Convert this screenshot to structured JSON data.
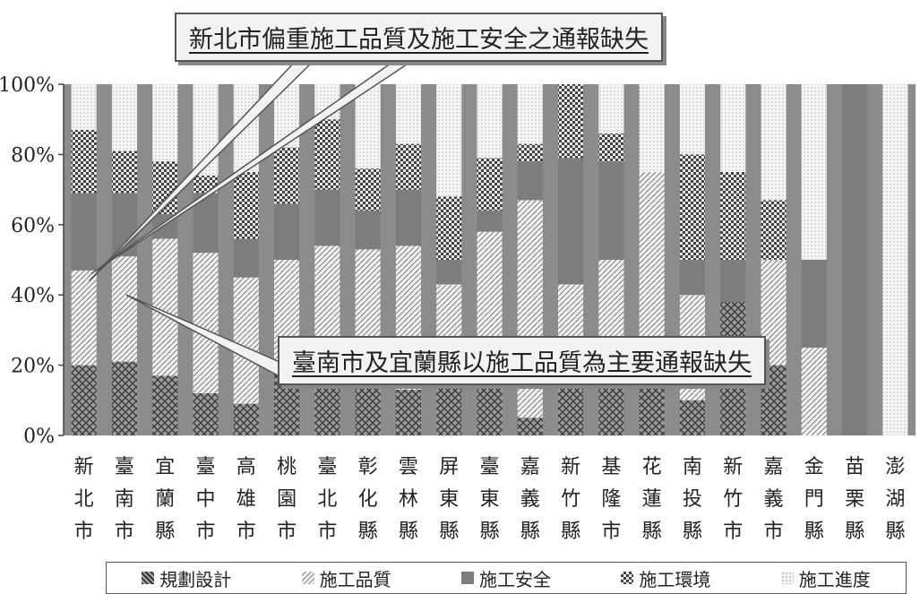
{
  "chart_data": {
    "type": "bar",
    "stacked": true,
    "categories": [
      [
        "新",
        "北",
        "市"
      ],
      [
        "臺",
        "南",
        "市"
      ],
      [
        "宜",
        "蘭",
        "縣"
      ],
      [
        "臺",
        "中",
        "市"
      ],
      [
        "高",
        "雄",
        "市"
      ],
      [
        "桃",
        "園",
        "市"
      ],
      [
        "臺",
        "北",
        "市"
      ],
      [
        "彰",
        "化",
        "縣"
      ],
      [
        "雲",
        "林",
        "縣"
      ],
      [
        "屏",
        "東",
        "縣"
      ],
      [
        "臺",
        "東",
        "縣"
      ],
      [
        "嘉",
        "義",
        "縣"
      ],
      [
        "新",
        "竹",
        "縣"
      ],
      [
        "基",
        "隆",
        "市"
      ],
      [
        "花",
        "蓮",
        "縣"
      ],
      [
        "南",
        "投",
        "縣"
      ],
      [
        "新",
        "竹",
        "市"
      ],
      [
        "嘉",
        "義",
        "市"
      ],
      [
        "金",
        "門",
        "縣"
      ],
      [
        "苗",
        "栗",
        "縣"
      ],
      [
        "澎",
        "湖",
        "縣"
      ]
    ],
    "series": [
      {
        "name": "規劃設計",
        "values": [
          20,
          21,
          17,
          12,
          9,
          18,
          20,
          18,
          13,
          17,
          20,
          5,
          17,
          20,
          25,
          10,
          38,
          20,
          0,
          0,
          0
        ]
      },
      {
        "name": "施工品質",
        "values": [
          27,
          30,
          39,
          40,
          36,
          32,
          34,
          35,
          41,
          26,
          38,
          62,
          26,
          30,
          50,
          30,
          0,
          30,
          25,
          0,
          0
        ]
      },
      {
        "name": "施工安全",
        "values": [
          22,
          18,
          7,
          17,
          11,
          16,
          16,
          11,
          16,
          7,
          6,
          11,
          36,
          28,
          0,
          10,
          12,
          0,
          25,
          100,
          0
        ]
      },
      {
        "name": "施工環境",
        "values": [
          18,
          12,
          15,
          5,
          19,
          16,
          20,
          12,
          13,
          18,
          15,
          5,
          21,
          8,
          0,
          30,
          25,
          17,
          0,
          0,
          0
        ]
      },
      {
        "name": "施工進度",
        "values": [
          13,
          19,
          22,
          26,
          25,
          18,
          10,
          24,
          17,
          32,
          21,
          17,
          0,
          14,
          25,
          20,
          25,
          33,
          50,
          0,
          100
        ]
      }
    ],
    "y_ticks": [
      "100%",
      "80%",
      "60%",
      "40%",
      "20%",
      "0%"
    ],
    "ylim": [
      0,
      100
    ],
    "legend_position": "bottom",
    "annotations": [
      "新北市偏重施工品質及施工安全之通報缺失",
      "臺南市及宜蘭縣以施工品質為主要通報缺失"
    ],
    "colors": {
      "plot_bg": "#8c8c8c",
      "bar_dark": "#7a7a7a",
      "bar_light": "#d4d4d4"
    }
  }
}
